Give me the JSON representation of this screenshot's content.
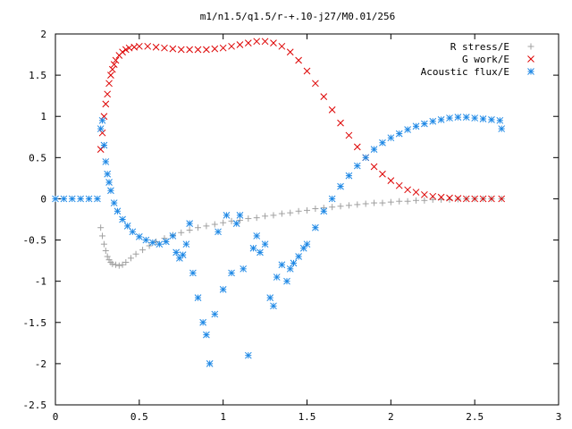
{
  "chart_data": {
    "type": "scatter",
    "title": "m1/n1.5/q1.5/r-+.10-j27/M0.01/256",
    "xlabel": "",
    "ylabel": "",
    "xlim": [
      0,
      3
    ],
    "ylim": [
      -2.5,
      2
    ],
    "xticks": [
      "0",
      "0.5",
      "1",
      "1.5",
      "2",
      "2.5",
      "3"
    ],
    "yticks": [
      "2",
      "1.5",
      "1",
      "0.5",
      "0",
      "-0.5",
      "-1",
      "-1.5",
      "-2",
      "-2.5"
    ],
    "grid": false,
    "legend_position": "top-right",
    "series": [
      {
        "name": "R stress/E",
        "marker": "plus",
        "color": "#a0a0a0",
        "x": [
          0.27,
          0.28,
          0.29,
          0.3,
          0.31,
          0.32,
          0.33,
          0.34,
          0.36,
          0.38,
          0.4,
          0.42,
          0.45,
          0.48,
          0.52,
          0.56,
          0.6,
          0.65,
          0.7,
          0.75,
          0.8,
          0.85,
          0.9,
          0.95,
          1.0,
          1.05,
          1.1,
          1.15,
          1.2,
          1.25,
          1.3,
          1.35,
          1.4,
          1.45,
          1.5,
          1.55,
          1.6,
          1.65,
          1.7,
          1.75,
          1.8,
          1.85,
          1.9,
          1.95,
          2.0,
          2.05,
          2.1,
          2.15,
          2.2,
          2.25,
          2.3,
          2.35,
          2.4,
          2.45,
          2.5,
          2.55,
          2.6,
          2.66
        ],
        "y": [
          -0.35,
          -0.45,
          -0.55,
          -0.63,
          -0.7,
          -0.74,
          -0.77,
          -0.79,
          -0.8,
          -0.81,
          -0.8,
          -0.77,
          -0.72,
          -0.67,
          -0.62,
          -0.57,
          -0.52,
          -0.48,
          -0.44,
          -0.41,
          -0.38,
          -0.35,
          -0.33,
          -0.31,
          -0.29,
          -0.27,
          -0.26,
          -0.24,
          -0.23,
          -0.21,
          -0.2,
          -0.18,
          -0.17,
          -0.15,
          -0.14,
          -0.12,
          -0.11,
          -0.1,
          -0.09,
          -0.08,
          -0.07,
          -0.06,
          -0.05,
          -0.05,
          -0.04,
          -0.03,
          -0.03,
          -0.02,
          -0.02,
          -0.01,
          -0.01,
          -0.01,
          -0.005,
          0.0,
          0.0,
          0.0,
          0.0,
          0.0
        ]
      },
      {
        "name": "G work/E",
        "marker": "cross",
        "color": "#dd0000",
        "x": [
          0.27,
          0.28,
          0.29,
          0.3,
          0.31,
          0.32,
          0.33,
          0.34,
          0.35,
          0.36,
          0.38,
          0.4,
          0.42,
          0.44,
          0.47,
          0.5,
          0.55,
          0.6,
          0.65,
          0.7,
          0.75,
          0.8,
          0.85,
          0.9,
          0.95,
          1.0,
          1.05,
          1.1,
          1.15,
          1.2,
          1.25,
          1.3,
          1.35,
          1.4,
          1.45,
          1.5,
          1.55,
          1.6,
          1.65,
          1.7,
          1.75,
          1.8,
          1.85,
          1.9,
          1.95,
          2.0,
          2.05,
          2.1,
          2.15,
          2.2,
          2.25,
          2.3,
          2.35,
          2.4,
          2.45,
          2.5,
          2.55,
          2.6,
          2.66
        ],
        "y": [
          0.6,
          0.8,
          1.0,
          1.15,
          1.27,
          1.4,
          1.5,
          1.57,
          1.63,
          1.68,
          1.74,
          1.78,
          1.81,
          1.83,
          1.84,
          1.85,
          1.85,
          1.84,
          1.83,
          1.82,
          1.81,
          1.81,
          1.81,
          1.81,
          1.82,
          1.83,
          1.85,
          1.87,
          1.89,
          1.91,
          1.91,
          1.89,
          1.85,
          1.78,
          1.68,
          1.55,
          1.4,
          1.24,
          1.08,
          0.92,
          0.77,
          0.63,
          0.5,
          0.39,
          0.3,
          0.22,
          0.16,
          0.11,
          0.08,
          0.05,
          0.03,
          0.02,
          0.01,
          0.005,
          0.0,
          0.0,
          0.0,
          0.0,
          0.0
        ]
      },
      {
        "name": "Acoustic flux/E",
        "marker": "star",
        "color": "#1e88e5",
        "x": [
          0.0,
          0.05,
          0.1,
          0.15,
          0.2,
          0.25,
          0.27,
          0.28,
          0.29,
          0.3,
          0.31,
          0.32,
          0.33,
          0.35,
          0.37,
          0.4,
          0.43,
          0.46,
          0.5,
          0.54,
          0.58,
          0.62,
          0.66,
          0.7,
          0.72,
          0.74,
          0.76,
          0.78,
          0.8,
          0.82,
          0.85,
          0.88,
          0.9,
          0.92,
          0.95,
          0.97,
          1.0,
          1.02,
          1.05,
          1.08,
          1.1,
          1.12,
          1.15,
          1.18,
          1.2,
          1.22,
          1.25,
          1.28,
          1.3,
          1.32,
          1.35,
          1.38,
          1.4,
          1.42,
          1.45,
          1.48,
          1.5,
          1.55,
          1.6,
          1.65,
          1.7,
          1.75,
          1.8,
          1.85,
          1.9,
          1.95,
          2.0,
          2.05,
          2.1,
          2.15,
          2.2,
          2.25,
          2.3,
          2.35,
          2.4,
          2.45,
          2.5,
          2.55,
          2.6,
          2.65,
          2.66
        ],
        "y": [
          0.0,
          0.0,
          0.0,
          0.0,
          0.0,
          0.0,
          0.85,
          0.95,
          0.65,
          0.45,
          0.3,
          0.2,
          0.1,
          -0.05,
          -0.15,
          -0.25,
          -0.33,
          -0.4,
          -0.46,
          -0.5,
          -0.53,
          -0.55,
          -0.52,
          -0.45,
          -0.65,
          -0.72,
          -0.68,
          -0.55,
          -0.3,
          -0.9,
          -1.2,
          -1.5,
          -1.65,
          -2.0,
          -1.4,
          -0.4,
          -1.1,
          -0.2,
          -0.9,
          -0.3,
          -0.2,
          -0.85,
          -1.9,
          -0.6,
          -0.45,
          -0.65,
          -0.55,
          -1.2,
          -1.3,
          -0.95,
          -0.8,
          -1.0,
          -0.85,
          -0.78,
          -0.7,
          -0.6,
          -0.55,
          -0.35,
          -0.15,
          0.0,
          0.15,
          0.28,
          0.4,
          0.5,
          0.6,
          0.68,
          0.74,
          0.79,
          0.84,
          0.88,
          0.91,
          0.94,
          0.96,
          0.98,
          0.99,
          0.99,
          0.98,
          0.97,
          0.96,
          0.95,
          0.85
        ]
      }
    ]
  }
}
